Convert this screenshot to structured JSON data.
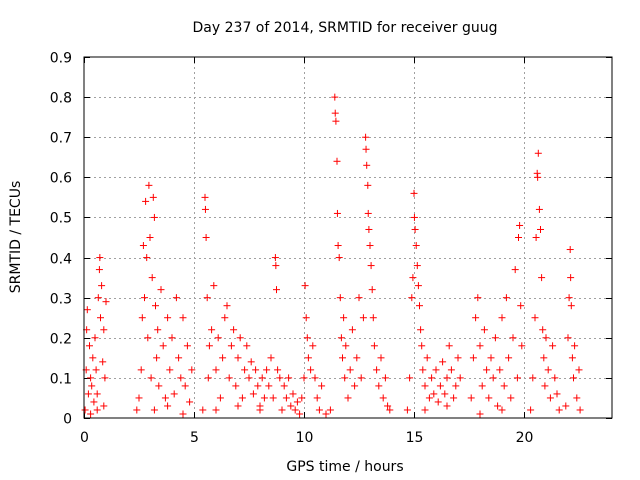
{
  "chart_data": {
    "type": "scatter",
    "title": "Day 237 of 2014, SRMTID for receiver guug",
    "xlabel": "GPS time / hours",
    "ylabel": "SRMTID / TECUs",
    "xlim": [
      0,
      24
    ],
    "ylim": [
      0,
      0.9
    ],
    "xticks": [
      0,
      5,
      10,
      15,
      20
    ],
    "xtick_labels": [
      "0",
      "5",
      "10",
      "15",
      "20"
    ],
    "yticks": [
      0,
      0.1,
      0.2,
      0.3,
      0.4,
      0.5,
      0.6,
      0.7,
      0.8,
      0.9
    ],
    "ytick_labels": [
      "0",
      "0.1",
      "0.2",
      "0.3",
      "0.4",
      "0.5",
      "0.6",
      "0.7",
      "0.8",
      "0.9"
    ],
    "grid": true,
    "marker": "+",
    "color": "#ff0000",
    "series": [
      {
        "name": "SRMTID",
        "points": [
          [
            0.05,
            0.02
          ],
          [
            0.1,
            0.12
          ],
          [
            0.12,
            0.22
          ],
          [
            0.15,
            0.27
          ],
          [
            0.2,
            0.06
          ],
          [
            0.25,
            0.18
          ],
          [
            0.3,
            0.1
          ],
          [
            0.35,
            0.08
          ],
          [
            0.4,
            0.15
          ],
          [
            0.45,
            0.04
          ],
          [
            0.5,
            0.2
          ],
          [
            0.55,
            0.12
          ],
          [
            0.6,
            0.06
          ],
          [
            0.65,
            0.3
          ],
          [
            0.7,
            0.37
          ],
          [
            0.72,
            0.4
          ],
          [
            0.75,
            0.25
          ],
          [
            0.8,
            0.33
          ],
          [
            0.85,
            0.14
          ],
          [
            0.9,
            0.22
          ],
          [
            0.95,
            0.1
          ],
          [
            1.0,
            0.29
          ],
          [
            0.3,
            0.01
          ],
          [
            0.6,
            0.02
          ],
          [
            0.9,
            0.03
          ],
          [
            2.4,
            0.02
          ],
          [
            2.5,
            0.05
          ],
          [
            2.6,
            0.12
          ],
          [
            2.65,
            0.25
          ],
          [
            2.7,
            0.43
          ],
          [
            2.75,
            0.3
          ],
          [
            2.8,
            0.54
          ],
          [
            2.85,
            0.4
          ],
          [
            2.9,
            0.2
          ],
          [
            2.95,
            0.58
          ],
          [
            3.0,
            0.45
          ],
          [
            3.05,
            0.1
          ],
          [
            3.1,
            0.35
          ],
          [
            3.15,
            0.55
          ],
          [
            3.2,
            0.5
          ],
          [
            3.25,
            0.28
          ],
          [
            3.3,
            0.15
          ],
          [
            3.35,
            0.22
          ],
          [
            3.4,
            0.08
          ],
          [
            3.5,
            0.32
          ],
          [
            3.6,
            0.18
          ],
          [
            3.7,
            0.05
          ],
          [
            3.8,
            0.25
          ],
          [
            3.9,
            0.12
          ],
          [
            4.0,
            0.2
          ],
          [
            4.1,
            0.06
          ],
          [
            4.2,
            0.3
          ],
          [
            4.3,
            0.15
          ],
          [
            4.4,
            0.1
          ],
          [
            4.5,
            0.25
          ],
          [
            4.6,
            0.08
          ],
          [
            4.7,
            0.18
          ],
          [
            4.8,
            0.04
          ],
          [
            4.9,
            0.12
          ],
          [
            3.2,
            0.02
          ],
          [
            3.8,
            0.03
          ],
          [
            4.5,
            0.01
          ],
          [
            5.4,
            0.02
          ],
          [
            5.5,
            0.55
          ],
          [
            5.52,
            0.52
          ],
          [
            5.55,
            0.45
          ],
          [
            5.6,
            0.3
          ],
          [
            5.65,
            0.1
          ],
          [
            5.7,
            0.18
          ],
          [
            5.8,
            0.22
          ],
          [
            5.9,
            0.33
          ],
          [
            6.0,
            0.12
          ],
          [
            6.1,
            0.2
          ],
          [
            6.2,
            0.05
          ],
          [
            6.3,
            0.15
          ],
          [
            6.4,
            0.25
          ],
          [
            6.5,
            0.28
          ],
          [
            6.6,
            0.1
          ],
          [
            6.7,
            0.18
          ],
          [
            6.8,
            0.22
          ],
          [
            6.9,
            0.08
          ],
          [
            7.0,
            0.15
          ],
          [
            7.1,
            0.2
          ],
          [
            7.2,
            0.05
          ],
          [
            7.3,
            0.12
          ],
          [
            7.4,
            0.18
          ],
          [
            7.5,
            0.1
          ],
          [
            7.6,
            0.14
          ],
          [
            7.7,
            0.06
          ],
          [
            7.8,
            0.12
          ],
          [
            7.9,
            0.08
          ],
          [
            8.0,
            0.03
          ],
          [
            8.1,
            0.1
          ],
          [
            8.2,
            0.05
          ],
          [
            8.3,
            0.12
          ],
          [
            8.4,
            0.08
          ],
          [
            8.5,
            0.15
          ],
          [
            8.6,
            0.05
          ],
          [
            8.7,
            0.4
          ],
          [
            8.72,
            0.38
          ],
          [
            8.75,
            0.32
          ],
          [
            8.8,
            0.12
          ],
          [
            8.9,
            0.1
          ],
          [
            6.0,
            0.02
          ],
          [
            7.0,
            0.03
          ],
          [
            8.0,
            0.02
          ],
          [
            9.0,
            0.02
          ],
          [
            9.1,
            0.08
          ],
          [
            9.2,
            0.05
          ],
          [
            9.3,
            0.1
          ],
          [
            9.4,
            0.03
          ],
          [
            9.5,
            0.06
          ],
          [
            9.6,
            0.02
          ],
          [
            9.7,
            0.04
          ],
          [
            9.8,
            0.01
          ],
          [
            9.9,
            0.05
          ],
          [
            10.0,
            0.1
          ],
          [
            10.05,
            0.33
          ],
          [
            10.1,
            0.25
          ],
          [
            10.15,
            0.2
          ],
          [
            10.2,
            0.15
          ],
          [
            10.3,
            0.12
          ],
          [
            10.4,
            0.18
          ],
          [
            10.5,
            0.1
          ],
          [
            10.6,
            0.05
          ],
          [
            10.7,
            0.02
          ],
          [
            10.8,
            0.08
          ],
          [
            11.0,
            0.01
          ],
          [
            11.2,
            0.02
          ],
          [
            11.4,
            0.8
          ],
          [
            11.42,
            0.76
          ],
          [
            11.45,
            0.74
          ],
          [
            11.5,
            0.64
          ],
          [
            11.52,
            0.51
          ],
          [
            11.55,
            0.43
          ],
          [
            11.6,
            0.4
          ],
          [
            11.65,
            0.3
          ],
          [
            11.7,
            0.2
          ],
          [
            11.75,
            0.15
          ],
          [
            11.8,
            0.25
          ],
          [
            11.85,
            0.1
          ],
          [
            11.9,
            0.18
          ],
          [
            12.0,
            0.05
          ],
          [
            12.1,
            0.12
          ],
          [
            12.2,
            0.22
          ],
          [
            12.3,
            0.08
          ],
          [
            12.4,
            0.15
          ],
          [
            12.5,
            0.3
          ],
          [
            12.6,
            0.1
          ],
          [
            12.7,
            0.25
          ],
          [
            12.8,
            0.7
          ],
          [
            12.82,
            0.67
          ],
          [
            12.85,
            0.63
          ],
          [
            12.9,
            0.58
          ],
          [
            12.92,
            0.51
          ],
          [
            12.95,
            0.47
          ],
          [
            13.0,
            0.43
          ],
          [
            13.05,
            0.38
          ],
          [
            13.1,
            0.32
          ],
          [
            13.15,
            0.25
          ],
          [
            13.2,
            0.18
          ],
          [
            13.3,
            0.12
          ],
          [
            13.4,
            0.08
          ],
          [
            13.5,
            0.15
          ],
          [
            13.6,
            0.05
          ],
          [
            13.7,
            0.1
          ],
          [
            13.8,
            0.03
          ],
          [
            13.9,
            0.02
          ],
          [
            14.7,
            0.02
          ],
          [
            14.8,
            0.1
          ],
          [
            14.9,
            0.3
          ],
          [
            14.95,
            0.35
          ],
          [
            15.0,
            0.56
          ],
          [
            15.02,
            0.5
          ],
          [
            15.05,
            0.47
          ],
          [
            15.1,
            0.43
          ],
          [
            15.15,
            0.38
          ],
          [
            15.2,
            0.33
          ],
          [
            15.25,
            0.28
          ],
          [
            15.3,
            0.22
          ],
          [
            15.35,
            0.18
          ],
          [
            15.4,
            0.12
          ],
          [
            15.5,
            0.08
          ],
          [
            15.6,
            0.15
          ],
          [
            15.7,
            0.05
          ],
          [
            15.8,
            0.1
          ],
          [
            15.9,
            0.06
          ],
          [
            16.0,
            0.12
          ],
          [
            16.1,
            0.04
          ],
          [
            16.2,
            0.08
          ],
          [
            16.3,
            0.14
          ],
          [
            16.4,
            0.06
          ],
          [
            16.5,
            0.1
          ],
          [
            16.6,
            0.18
          ],
          [
            16.7,
            0.12
          ],
          [
            16.8,
            0.05
          ],
          [
            16.9,
            0.08
          ],
          [
            17.0,
            0.15
          ],
          [
            17.1,
            0.1
          ],
          [
            15.5,
            0.02
          ],
          [
            16.5,
            0.03
          ],
          [
            17.6,
            0.05
          ],
          [
            17.7,
            0.15
          ],
          [
            17.8,
            0.25
          ],
          [
            17.9,
            0.3
          ],
          [
            18.0,
            0.18
          ],
          [
            18.1,
            0.08
          ],
          [
            18.2,
            0.22
          ],
          [
            18.3,
            0.12
          ],
          [
            18.4,
            0.05
          ],
          [
            18.5,
            0.15
          ],
          [
            18.6,
            0.1
          ],
          [
            18.7,
            0.2
          ],
          [
            18.8,
            0.03
          ],
          [
            18.9,
            0.12
          ],
          [
            19.0,
            0.25
          ],
          [
            19.1,
            0.08
          ],
          [
            19.2,
            0.3
          ],
          [
            19.3,
            0.15
          ],
          [
            19.4,
            0.05
          ],
          [
            19.5,
            0.2
          ],
          [
            19.6,
            0.37
          ],
          [
            19.7,
            0.1
          ],
          [
            19.75,
            0.45
          ],
          [
            19.8,
            0.48
          ],
          [
            19.85,
            0.28
          ],
          [
            19.9,
            0.18
          ],
          [
            18.0,
            0.01
          ],
          [
            19.0,
            0.02
          ],
          [
            20.3,
            0.02
          ],
          [
            20.4,
            0.1
          ],
          [
            20.5,
            0.25
          ],
          [
            20.55,
            0.45
          ],
          [
            20.6,
            0.61
          ],
          [
            20.62,
            0.6
          ],
          [
            20.65,
            0.66
          ],
          [
            20.7,
            0.52
          ],
          [
            20.75,
            0.47
          ],
          [
            20.8,
            0.35
          ],
          [
            20.85,
            0.22
          ],
          [
            20.9,
            0.15
          ],
          [
            20.95,
            0.08
          ],
          [
            21.0,
            0.2
          ],
          [
            21.1,
            0.12
          ],
          [
            21.2,
            0.05
          ],
          [
            21.3,
            0.18
          ],
          [
            21.4,
            0.1
          ],
          [
            21.5,
            0.06
          ],
          [
            21.6,
            0.02
          ],
          [
            21.9,
            0.03
          ],
          [
            22.0,
            0.2
          ],
          [
            22.05,
            0.3
          ],
          [
            22.1,
            0.42
          ],
          [
            22.12,
            0.35
          ],
          [
            22.15,
            0.28
          ],
          [
            22.2,
            0.15
          ],
          [
            22.25,
            0.1
          ],
          [
            22.3,
            0.18
          ],
          [
            22.4,
            0.05
          ],
          [
            22.5,
            0.12
          ],
          [
            22.55,
            0.02
          ]
        ]
      }
    ]
  }
}
